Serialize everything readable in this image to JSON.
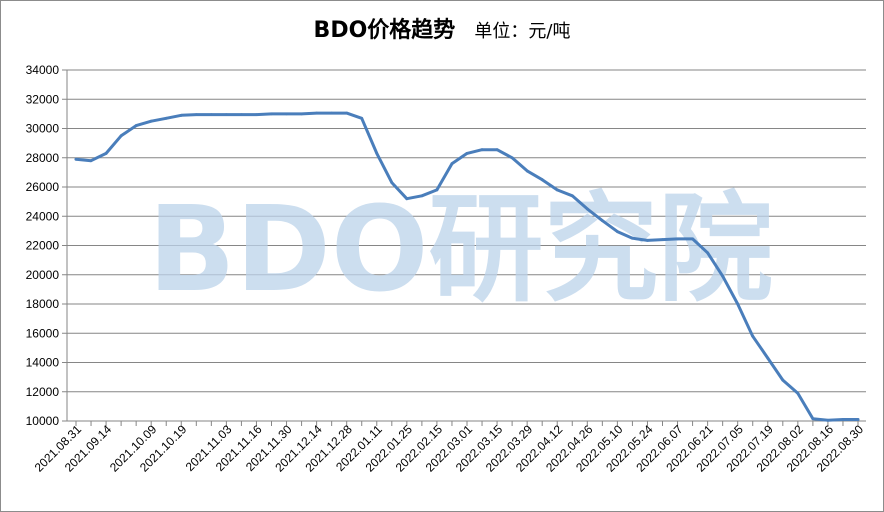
{
  "chart_data": {
    "type": "line",
    "title": "BDO价格趋势",
    "unit": "单位：元/吨",
    "watermark": "BDO研究院",
    "ylim": [
      10000,
      34000
    ],
    "yticks": [
      10000,
      12000,
      14000,
      16000,
      18000,
      20000,
      22000,
      24000,
      26000,
      28000,
      30000,
      32000,
      34000
    ],
    "grid": true,
    "legend": "none",
    "line_color": "#4a7ebb",
    "x": [
      "2021.08.31",
      "",
      "2021.09.14",
      "",
      "",
      "2021.10.09",
      "",
      "2021.10.19",
      "",
      "",
      "2021.11.03",
      "",
      "2021.11.16",
      "",
      "2021.11.30",
      "",
      "2021.12.14",
      "",
      "2021.12.28",
      "",
      "2022.01.11",
      "",
      "2022.01.25",
      "",
      "2022.02.15",
      "",
      "2022.03.01",
      "",
      "2022.03.15",
      "",
      "2022.03.29",
      "",
      "2022.04.12",
      "",
      "2022.04.26",
      "",
      "2022.05.10",
      "",
      "2022.05.24",
      "",
      "2022.06.07",
      "",
      "2022.06.21",
      "",
      "2022.07.05",
      "",
      "2022.07.19",
      "",
      "2022.08.02",
      "",
      "2022.08.16",
      "",
      "2022.08.30"
    ],
    "series": [
      {
        "values": [
          27900,
          27800,
          28300,
          29500,
          30200,
          30500,
          30700,
          30900,
          30950,
          30950,
          30950,
          30950,
          30950,
          31000,
          31000,
          31000,
          31050,
          31050,
          31050,
          30700,
          28300,
          26300,
          25200,
          25400,
          25800,
          27600,
          28300,
          28550,
          28550,
          28000,
          27100,
          26500,
          25800,
          25400,
          24500,
          23700,
          22950,
          22500,
          22350,
          22400,
          22450,
          22450,
          21500,
          19900,
          18000,
          15800,
          14300,
          12800,
          11900,
          10150,
          10050,
          10100,
          10100
        ]
      }
    ]
  }
}
